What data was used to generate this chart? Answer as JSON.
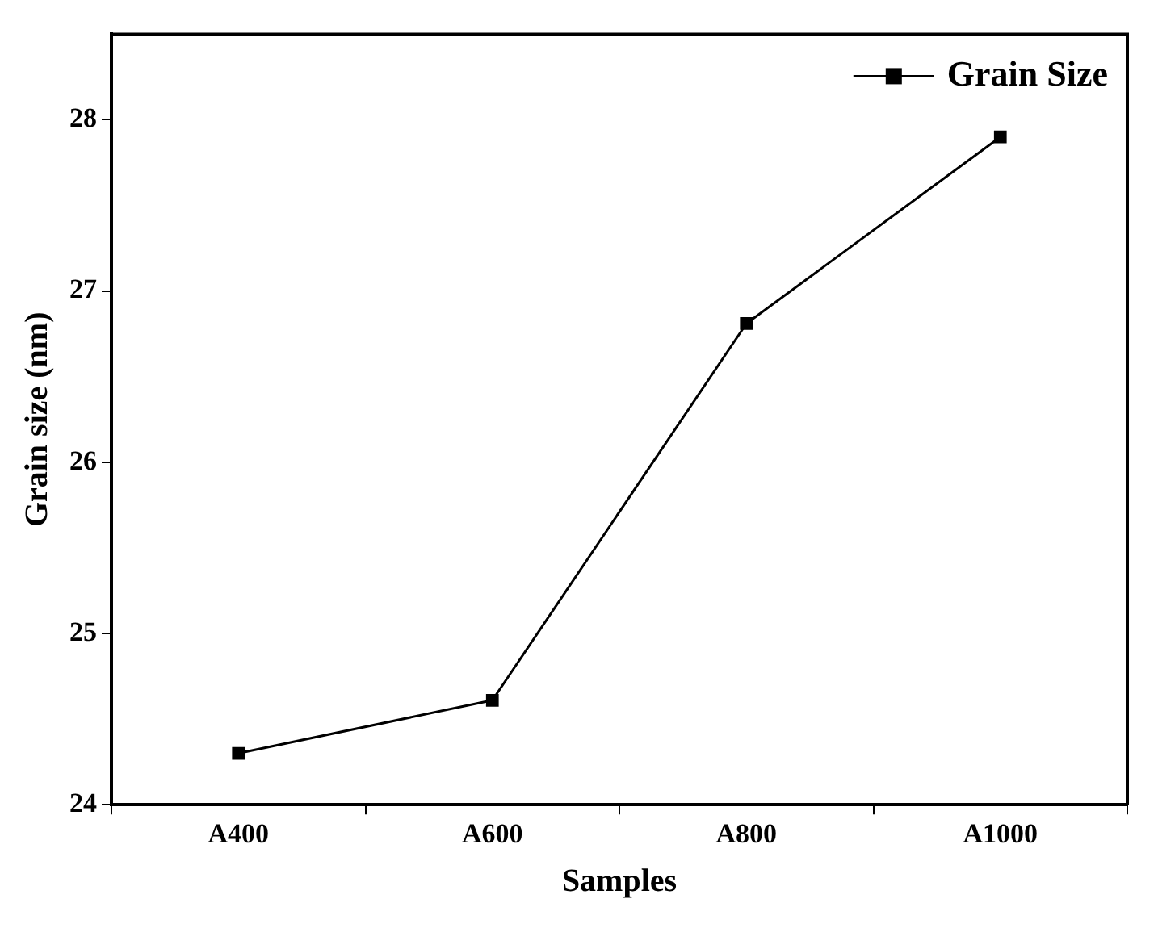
{
  "chart_data": {
    "type": "line",
    "xlabel": "Samples",
    "ylabel": "Grain size (nm)",
    "categories": [
      "A400",
      "A600",
      "A800",
      "A1000"
    ],
    "series": [
      {
        "name": "Grain Size",
        "color": "#000000",
        "values": [
          24.3,
          24.61,
          26.81,
          27.9
        ]
      }
    ],
    "ylim": [
      24,
      28.5
    ],
    "yticks": [
      24,
      25,
      26,
      27,
      28
    ],
    "grid": false,
    "legend": "top right",
    "marker": "square",
    "line_style": "solid"
  }
}
